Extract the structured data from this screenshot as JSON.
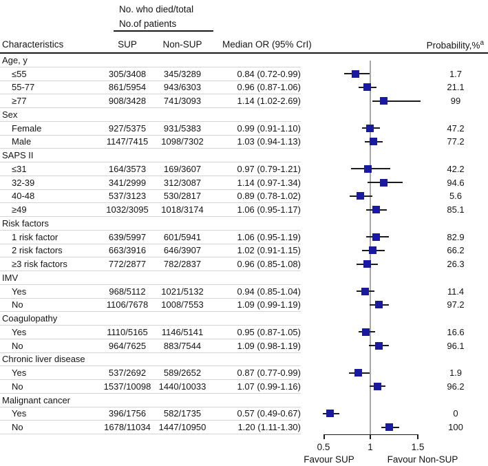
{
  "header": {
    "col_group_line1": "No. who died/total",
    "col_group_line2": "No.of patients",
    "characteristics": "Characteristics",
    "sup": "SUP",
    "non_sup": "Non-SUP",
    "median_or": "Median OR (95% CrI)",
    "probability": "Probability,%",
    "probability_superscript": "a"
  },
  "axis": {
    "ticks": [
      "0.5",
      "1",
      "1.5"
    ],
    "favour_left": "Favour SUP",
    "favour_right": "Favour Non-SUP"
  },
  "colors": {
    "marker": "#1a1aa0",
    "whisker": "#1c1c1c",
    "reference_line": "#a6a6a6",
    "separator": "#d4d4d4",
    "text": "#141414"
  },
  "chart_data": {
    "type": "forest",
    "x_axis": {
      "ticks": [
        0.5,
        1,
        1.5
      ],
      "reference": 1.0,
      "xlim": [
        0.47,
        1.53
      ]
    },
    "columns": [
      "Characteristics",
      "SUP",
      "Non-SUP",
      "Median OR (95% CrI)",
      "Probability,%"
    ],
    "groups": [
      {
        "label": "Age, y",
        "rows": [
          {
            "label": "≤55",
            "sup": "305/3408",
            "nonsup": "345/3289",
            "or_label": "0.84 (0.72-0.99)",
            "or": 0.84,
            "lo": 0.72,
            "hi": 0.99,
            "prob": "1.7"
          },
          {
            "label": "55-77",
            "sup": "861/5954",
            "nonsup": "943/6303",
            "or_label": "0.96 (0.87-1.06)",
            "or": 0.96,
            "lo": 0.87,
            "hi": 1.06,
            "prob": "21.1"
          },
          {
            "label": "≥77",
            "sup": "908/3428",
            "nonsup": "741/3093",
            "or_label": "1.14 (1.02-2.69)",
            "or": 1.14,
            "lo": 1.02,
            "hi": 2.69,
            "prob": "99"
          }
        ]
      },
      {
        "label": "Sex",
        "rows": [
          {
            "label": "Female",
            "sup": "927/5375",
            "nonsup": "931/5383",
            "or_label": "0.99 (0.91-1.10)",
            "or": 0.99,
            "lo": 0.91,
            "hi": 1.1,
            "prob": "47.2"
          },
          {
            "label": "Male",
            "sup": "1147/7415",
            "nonsup": "1098/7302",
            "or_label": "1.03 (0.94-1.13)",
            "or": 1.03,
            "lo": 0.94,
            "hi": 1.13,
            "prob": "77.2"
          }
        ]
      },
      {
        "label": "SAPS II",
        "rows": [
          {
            "label": "≤31",
            "sup": "164/3573",
            "nonsup": "169/3607",
            "or_label": "0.97 (0.79-1.21)",
            "or": 0.97,
            "lo": 0.79,
            "hi": 1.21,
            "prob": "42.2"
          },
          {
            "label": "32-39",
            "sup": "341/2999",
            "nonsup": "312/3087",
            "or_label": "1.14 (0.97-1.34)",
            "or": 1.14,
            "lo": 0.97,
            "hi": 1.34,
            "prob": "94.6"
          },
          {
            "label": "40-48",
            "sup": "537/3123",
            "nonsup": "530/2817",
            "or_label": "0.89 (0.78-1.02)",
            "or": 0.89,
            "lo": 0.78,
            "hi": 1.02,
            "prob": "5.6"
          },
          {
            "label": "≥49",
            "sup": "1032/3095",
            "nonsup": "1018/3174",
            "or_label": "1.06 (0.95-1.17)",
            "or": 1.06,
            "lo": 0.95,
            "hi": 1.17,
            "prob": "85.1"
          }
        ]
      },
      {
        "label": "Risk factors",
        "rows": [
          {
            "label": "1 risk factor",
            "sup": "639/5997",
            "nonsup": "601/5941",
            "or_label": "1.06 (0.95-1.19)",
            "or": 1.06,
            "lo": 0.95,
            "hi": 1.19,
            "prob": "82.9"
          },
          {
            "label": "2 risk factors",
            "sup": "663/3916",
            "nonsup": "646/3907",
            "or_label": "1.02 (0.91-1.15)",
            "or": 1.02,
            "lo": 0.91,
            "hi": 1.15,
            "prob": "66.2"
          },
          {
            "label": "≥3 risk factors",
            "sup": "772/2877",
            "nonsup": "782/2837",
            "or_label": "0.96 (0.85-1.08)",
            "or": 0.96,
            "lo": 0.85,
            "hi": 1.08,
            "prob": "26.3"
          }
        ]
      },
      {
        "label": "IMV",
        "rows": [
          {
            "label": "Yes",
            "sup": "968/5112",
            "nonsup": "1021/5132",
            "or_label": "0.94 (0.85-1.04)",
            "or": 0.94,
            "lo": 0.85,
            "hi": 1.04,
            "prob": "11.4"
          },
          {
            "label": "No",
            "sup": "1106/7678",
            "nonsup": "1008/7553",
            "or_label": "1.09 (0.99-1.19)",
            "or": 1.09,
            "lo": 0.99,
            "hi": 1.19,
            "prob": "97.2"
          }
        ]
      },
      {
        "label": "Coagulopathy",
        "rows": [
          {
            "label": "Yes",
            "sup": "1110/5165",
            "nonsup": "1146/5141",
            "or_label": "0.95 (0.87-1.05)",
            "or": 0.95,
            "lo": 0.87,
            "hi": 1.05,
            "prob": "16.6"
          },
          {
            "label": "No",
            "sup": "964/7625",
            "nonsup": "883/7544",
            "or_label": "1.09 (0.98-1.19)",
            "or": 1.09,
            "lo": 0.98,
            "hi": 1.19,
            "prob": "96.1"
          }
        ]
      },
      {
        "label": "Chronic liver disease",
        "rows": [
          {
            "label": "Yes",
            "sup": "537/2692",
            "nonsup": "589/2652",
            "or_label": "0.87 (0.77-0.99)",
            "or": 0.87,
            "lo": 0.77,
            "hi": 0.99,
            "prob": "1.9"
          },
          {
            "label": "No",
            "sup": "1537/10098",
            "nonsup": "1440/10033",
            "or_label": "1.07 (0.99-1.16)",
            "or": 1.07,
            "lo": 0.99,
            "hi": 1.16,
            "prob": "96.2"
          }
        ]
      },
      {
        "label": "Malignant cancer",
        "rows": [
          {
            "label": "Yes",
            "sup": "396/1756",
            "nonsup": "582/1735",
            "or_label": "0.57 (0.49-0.67)",
            "or": 0.57,
            "lo": 0.49,
            "hi": 0.67,
            "prob": "0"
          },
          {
            "label": "No",
            "sup": "1678/11034",
            "nonsup": "1447/10950",
            "or_label": "1.20 (1.11-1.30)",
            "or": 1.2,
            "lo": 1.11,
            "hi": 1.3,
            "prob": "100"
          }
        ]
      }
    ]
  }
}
